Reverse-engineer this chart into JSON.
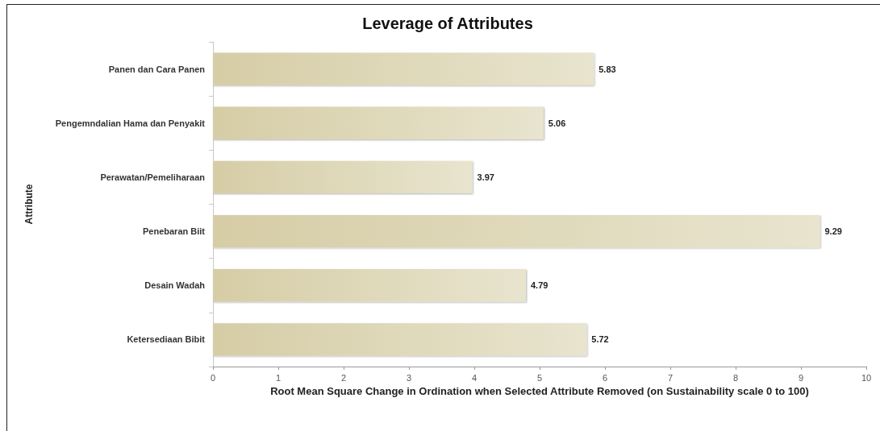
{
  "chart_data": {
    "type": "bar",
    "orientation": "horizontal",
    "title": "Leverage of Attributes",
    "xlabel": "Root Mean Square Change in Ordination when Selected Attribute Removed (on Sustainability scale 0 to 100)",
    "ylabel": "Attribute",
    "categories": [
      "Panen dan Cara Panen",
      "Pengemndalian Hama dan Penyakit",
      "Perawatan/Pemeliharaan",
      "Penebaran Biit",
      "Desain Wadah",
      "Ketersediaan Bibit"
    ],
    "values": [
      5.83,
      5.06,
      3.97,
      9.29,
      4.79,
      5.72
    ],
    "color": "#d6cda6",
    "xlim": [
      0,
      10
    ],
    "xticks": [
      0,
      1,
      2,
      3,
      4,
      5,
      6,
      7,
      8,
      9,
      10
    ],
    "data_labels": true
  }
}
